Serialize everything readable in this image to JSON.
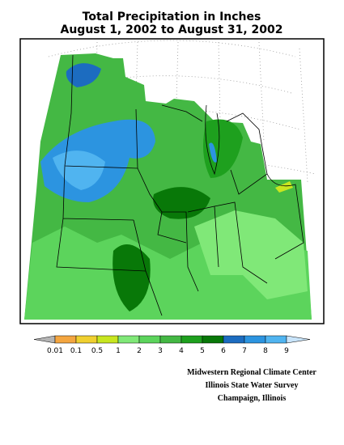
{
  "title": [
    "Total Precipitation in Inches",
    "August 1, 2002 to August 31, 2002"
  ],
  "legend": {
    "under_color": "#b4b4b4",
    "over_color": "#c8e4fa",
    "colors": [
      "#f4a640",
      "#f0d030",
      "#c8e620",
      "#80e878",
      "#5cd45c",
      "#44b844",
      "#1ea01e",
      "#087808",
      "#1c6cc0",
      "#2c94e0",
      "#50b4f0"
    ],
    "labels": [
      "0.01",
      "0.1",
      "0.5",
      "1",
      "2",
      "3",
      "4",
      "5",
      "6",
      "7",
      "8",
      "9"
    ]
  },
  "credits": [
    "Midwestern Regional Climate Center",
    "Illinois State Water Survey",
    "Champaign, Illinois"
  ]
}
